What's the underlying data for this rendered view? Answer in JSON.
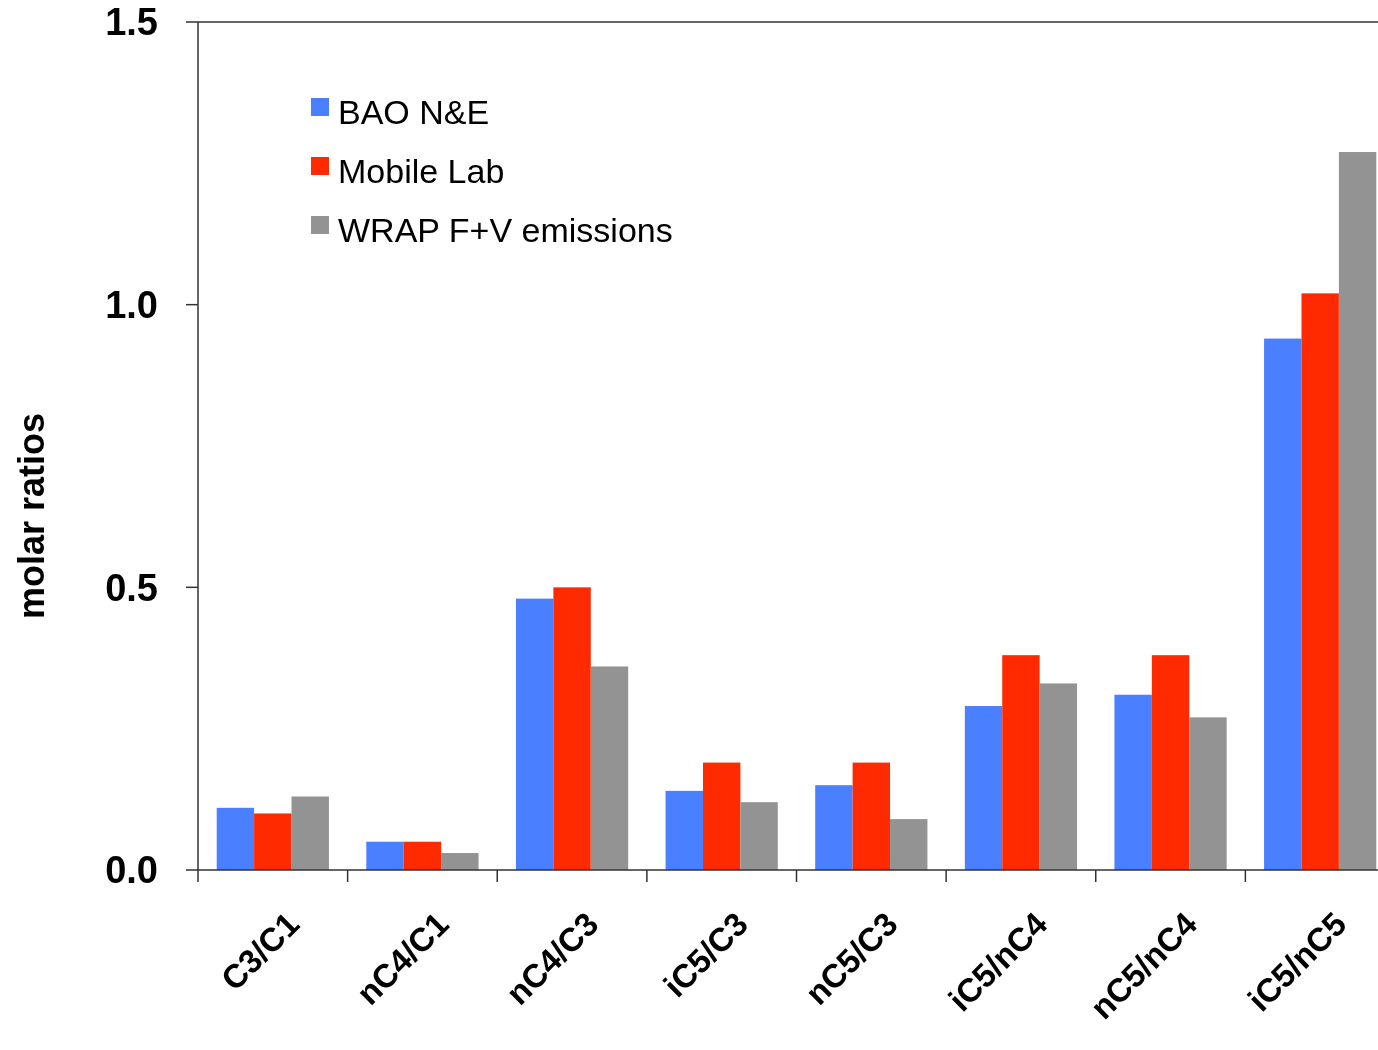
{
  "chart_data": {
    "type": "bar",
    "ylabel": "molar ratios",
    "categories": [
      "C3/C1",
      "nC4/C1",
      "nC4/C3",
      "iC5/C3",
      "nC5/C3",
      "iC5/nC4",
      "nC5/nC4",
      "iC5/nC5"
    ],
    "series": [
      {
        "name": "BAO N&E",
        "color": "#4a7fff",
        "values": [
          0.11,
          0.05,
          0.48,
          0.14,
          0.15,
          0.29,
          0.31,
          0.94
        ]
      },
      {
        "name": "Mobile Lab",
        "color": "#ff2a00",
        "values": [
          0.1,
          0.05,
          0.5,
          0.19,
          0.19,
          0.38,
          0.38,
          1.02
        ]
      },
      {
        "name": "WRAP F+V emissions",
        "color": "#939393",
        "values": [
          0.13,
          0.03,
          0.36,
          0.12,
          0.09,
          0.33,
          0.27,
          1.27
        ]
      }
    ],
    "ylim": [
      0,
      1.5
    ],
    "yticks": [
      {
        "value": 0,
        "label": "0.0"
      },
      {
        "value": 0.5,
        "label": "0.5"
      },
      {
        "value": 1,
        "label": "1.0"
      },
      {
        "value": 1.5,
        "label": "1.5"
      }
    ],
    "grid": false,
    "legend": "top left"
  }
}
